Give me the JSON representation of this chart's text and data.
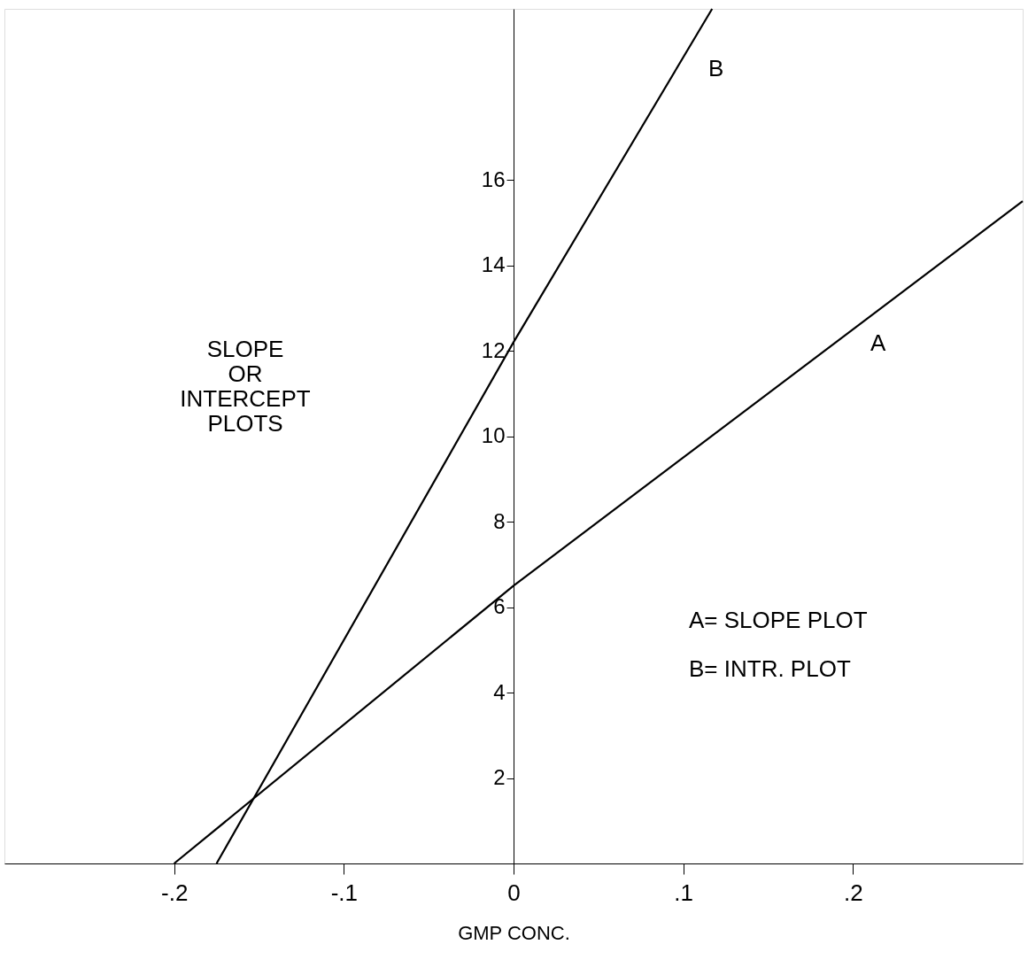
{
  "chart_data": {
    "type": "line",
    "xlabel": "GMP CONC.",
    "xlim": [
      -0.3,
      0.3
    ],
    "ylim": [
      0,
      20
    ],
    "xticks": [
      {
        "value": -0.2,
        "label": "-.2"
      },
      {
        "value": -0.1,
        "label": "-.1"
      },
      {
        "value": 0,
        "label": "0"
      },
      {
        "value": 0.1,
        "label": ".1"
      },
      {
        "value": 0.2,
        "label": ".2"
      }
    ],
    "yticks": [
      2,
      4,
      6,
      8,
      10,
      12,
      14,
      16
    ],
    "series": [
      {
        "color": "#000000",
        "x": [
          -0.2,
          0,
          0.3
        ],
        "values": [
          0,
          6.5,
          15.5
        ]
      },
      {
        "color": "#000000",
        "x": [
          -0.175,
          0,
          0.117
        ],
        "values": [
          0,
          12.2,
          20
        ]
      }
    ],
    "annotations": [
      "A",
      "B",
      "SLOPE OR INTERCEPT PLOTS",
      "A= SLOPE PLOT",
      "B= INTR. PLOT"
    ],
    "grid": false,
    "marker": "none",
    "line_style": "solid"
  }
}
